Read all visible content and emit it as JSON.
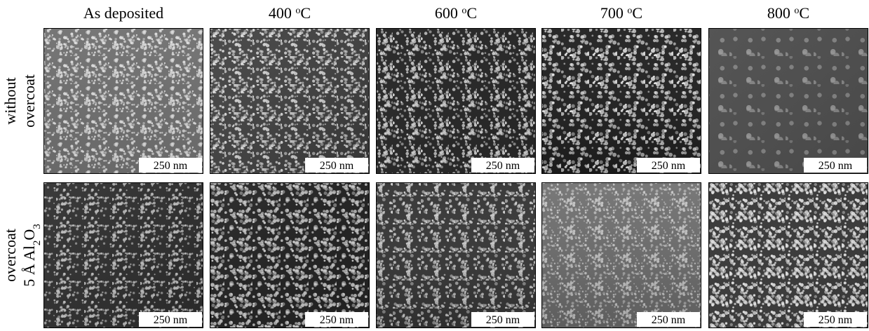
{
  "columns": [
    [
      {
        "t": "As deposited"
      }
    ],
    [
      {
        "t": "400 "
      },
      {
        "t": "o",
        "sup": true
      },
      {
        "t": "C"
      }
    ],
    [
      {
        "t": "600 "
      },
      {
        "t": "o",
        "sup": true
      },
      {
        "t": "C"
      }
    ],
    [
      {
        "t": "700 "
      },
      {
        "t": "o",
        "sup": true
      },
      {
        "t": "C"
      }
    ],
    [
      {
        "t": "800 "
      },
      {
        "t": "o",
        "sup": true
      },
      {
        "t": "C"
      }
    ]
  ],
  "rows": [
    {
      "lines": [
        [
          {
            "t": "without"
          }
        ],
        [
          {
            "t": "overcoat"
          }
        ]
      ],
      "panels": [
        {
          "scale_bar": "250 nm"
        },
        {
          "scale_bar": "250 nm"
        },
        {
          "scale_bar": "250 nm"
        },
        {
          "scale_bar": "250 nm"
        },
        {
          "scale_bar": "250 nm"
        }
      ]
    },
    {
      "lines": [
        [
          {
            "t": "overcoat"
          }
        ],
        [
          {
            "t": "5 Å Al"
          },
          {
            "t": "2",
            "sub": true
          },
          {
            "t": "O"
          },
          {
            "t": "3",
            "sub": true
          }
        ]
      ],
      "panels": [
        {
          "scale_bar": "250 nm"
        },
        {
          "scale_bar": "250 nm"
        },
        {
          "scale_bar": "250 nm"
        },
        {
          "scale_bar": "250 nm"
        },
        {
          "scale_bar": "250 nm"
        }
      ]
    }
  ]
}
